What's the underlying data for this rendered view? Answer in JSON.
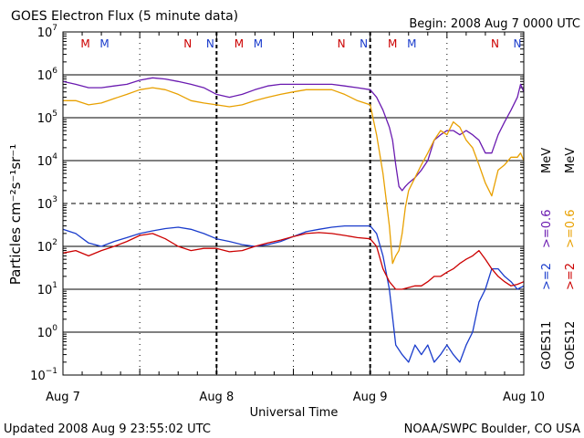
{
  "header": {
    "title": "GOES Electron Flux (5 minute data)",
    "begin": "Begin: 2008 Aug 7 0000 UTC"
  },
  "footer": {
    "updated": "Updated 2008 Aug  9 23:55:02 UTC",
    "credit": "NOAA/SWPC Boulder, CO USA"
  },
  "chart_data": {
    "type": "line",
    "title": "GOES Electron Flux (5 minute data)",
    "xlabel": "Universal Time",
    "ylabel": "Particles cm⁻²s⁻¹sr⁻¹",
    "yscale": "log",
    "ylim": [
      0.1,
      10000000
    ],
    "xlim_hours": [
      0,
      72
    ],
    "x_ticks": [
      {
        "hour": 0,
        "label": "Aug 7"
      },
      {
        "hour": 24,
        "label": "Aug 8"
      },
      {
        "hour": 48,
        "label": "Aug 9"
      },
      {
        "hour": 72,
        "label": "Aug 10"
      }
    ],
    "y_ticks": [
      {
        "exp": -1,
        "label": "10"
      },
      {
        "exp": 0,
        "label": "10"
      },
      {
        "exp": 1,
        "label": "10"
      },
      {
        "exp": 2,
        "label": "10"
      },
      {
        "exp": 3,
        "label": "10"
      },
      {
        "exp": 4,
        "label": "10"
      },
      {
        "exp": 5,
        "label": "10"
      },
      {
        "exp": 6,
        "label": "10"
      },
      {
        "exp": 7,
        "label": "10"
      }
    ],
    "threshold_lines": [
      {
        "value": 1000,
        "style": "dashed"
      }
    ],
    "midnight_noon_markers": [
      {
        "hour": 3.5,
        "label": "M",
        "color": "#cc0000"
      },
      {
        "hour": 6.5,
        "label": "M",
        "color": "#1a3ccc"
      },
      {
        "hour": 19.5,
        "label": "N",
        "color": "#cc0000"
      },
      {
        "hour": 23.0,
        "label": "N",
        "color": "#1a3ccc"
      },
      {
        "hour": 27.5,
        "label": "M",
        "color": "#cc0000"
      },
      {
        "hour": 30.5,
        "label": "M",
        "color": "#1a3ccc"
      },
      {
        "hour": 43.5,
        "label": "N",
        "color": "#cc0000"
      },
      {
        "hour": 47.0,
        "label": "N",
        "color": "#1a3ccc"
      },
      {
        "hour": 51.5,
        "label": "M",
        "color": "#cc0000"
      },
      {
        "hour": 54.5,
        "label": "M",
        "color": "#1a3ccc"
      },
      {
        "hour": 67.5,
        "label": "N",
        "color": "#cc0000"
      },
      {
        "hour": 71.0,
        "label": "N",
        "color": "#1a3ccc"
      }
    ],
    "dotted_verticals_hours": [
      12,
      36,
      60
    ],
    "legend": [
      {
        "text": ">=2",
        "color": "#1a3ccc"
      },
      {
        "text": ">=0.6",
        "color": "#6a1ab0"
      },
      {
        "text": ">=2",
        "color": "#cc0000"
      },
      {
        "text": ">=0.6",
        "color": "#e8a000"
      }
    ],
    "legend_units": [
      "MeV",
      "MeV"
    ],
    "satellites": [
      {
        "text": "GOES11"
      },
      {
        "text": "GOES12"
      }
    ],
    "series": [
      {
        "satellite": "GOES11",
        "energy": ">=0.6 MeV",
        "color": "#6a1ab0",
        "x": [
          0,
          2,
          4,
          6,
          8,
          10,
          12,
          14,
          16,
          18,
          20,
          22,
          24,
          26,
          28,
          30,
          32,
          34,
          36,
          38,
          40,
          42,
          44,
          46,
          48,
          49,
          50,
          51,
          51.5,
          52,
          52.5,
          53,
          53.5,
          54,
          55,
          56,
          57,
          58,
          59,
          60,
          61,
          62,
          63,
          64,
          65,
          66,
          67,
          68,
          69,
          70,
          71,
          71.5,
          72
        ],
        "y": [
          700000,
          600000,
          500000,
          500000,
          550000,
          600000,
          750000,
          850000,
          800000,
          700000,
          600000,
          500000,
          350000,
          300000,
          350000,
          450000,
          550000,
          600000,
          600000,
          600000,
          600000,
          600000,
          550000,
          500000,
          450000,
          300000,
          150000,
          60000,
          30000,
          8000,
          2500,
          2000,
          2500,
          3000,
          4000,
          6000,
          10000,
          30000,
          40000,
          50000,
          50000,
          40000,
          50000,
          40000,
          30000,
          15000,
          15000,
          40000,
          80000,
          150000,
          300000,
          600000,
          400000
        ]
      },
      {
        "satellite": "GOES12",
        "energy": ">=0.6 MeV",
        "color": "#e8a000",
        "x": [
          0,
          2,
          4,
          6,
          8,
          10,
          12,
          14,
          16,
          18,
          20,
          22,
          24,
          26,
          28,
          30,
          32,
          34,
          36,
          38,
          40,
          42,
          44,
          46,
          48,
          49,
          50,
          51,
          51.5,
          52,
          52.5,
          53,
          53.5,
          54,
          55,
          56,
          57,
          58,
          59,
          60,
          61,
          62,
          63,
          64,
          65,
          66,
          67,
          68,
          69,
          70,
          71,
          71.5,
          72
        ],
        "y": [
          250000,
          250000,
          200000,
          220000,
          280000,
          350000,
          450000,
          500000,
          450000,
          350000,
          250000,
          220000,
          200000,
          180000,
          200000,
          250000,
          300000,
          350000,
          400000,
          450000,
          450000,
          450000,
          350000,
          250000,
          200000,
          40000,
          5000,
          300,
          40,
          60,
          80,
          200,
          800,
          2000,
          4000,
          8000,
          15000,
          30000,
          50000,
          40000,
          80000,
          60000,
          30000,
          20000,
          8000,
          3000,
          1500,
          6000,
          8000,
          12000,
          12000,
          15000,
          10000
        ]
      },
      {
        "satellite": "GOES11",
        "energy": ">=2 MeV",
        "color": "#1a3ccc",
        "x": [
          0,
          2,
          4,
          6,
          8,
          10,
          12,
          14,
          16,
          18,
          20,
          22,
          24,
          26,
          28,
          30,
          32,
          34,
          36,
          38,
          40,
          42,
          44,
          46,
          48,
          49,
          50,
          51,
          52,
          53,
          54,
          55,
          56,
          57,
          58,
          59,
          60,
          61,
          62,
          63,
          64,
          65,
          66,
          67,
          68,
          69,
          70,
          71,
          72
        ],
        "y": [
          250,
          200,
          120,
          100,
          130,
          160,
          200,
          230,
          260,
          280,
          250,
          200,
          150,
          130,
          110,
          100,
          110,
          130,
          170,
          220,
          250,
          280,
          300,
          300,
          300,
          200,
          60,
          10,
          0.5,
          0.3,
          0.2,
          0.5,
          0.3,
          0.5,
          0.2,
          0.3,
          0.5,
          0.3,
          0.2,
          0.5,
          1,
          5,
          10,
          30,
          30,
          20,
          15,
          10,
          12
        ]
      },
      {
        "satellite": "GOES12",
        "energy": ">=2 MeV",
        "color": "#cc0000",
        "x": [
          0,
          2,
          4,
          6,
          8,
          10,
          12,
          14,
          16,
          18,
          20,
          22,
          24,
          26,
          28,
          30,
          32,
          34,
          36,
          38,
          40,
          42,
          44,
          46,
          48,
          49,
          50,
          51,
          52,
          53,
          54,
          55,
          56,
          57,
          58,
          59,
          60,
          61,
          62,
          63,
          64,
          65,
          66,
          67,
          68,
          69,
          70,
          71,
          72
        ],
        "y": [
          70,
          80,
          60,
          80,
          100,
          130,
          180,
          200,
          150,
          100,
          80,
          90,
          90,
          75,
          80,
          100,
          120,
          140,
          170,
          200,
          210,
          200,
          180,
          160,
          150,
          100,
          30,
          15,
          10,
          10,
          11,
          12,
          12,
          15,
          20,
          20,
          25,
          30,
          40,
          50,
          60,
          80,
          50,
          30,
          20,
          15,
          12,
          13,
          15
        ]
      }
    ]
  }
}
